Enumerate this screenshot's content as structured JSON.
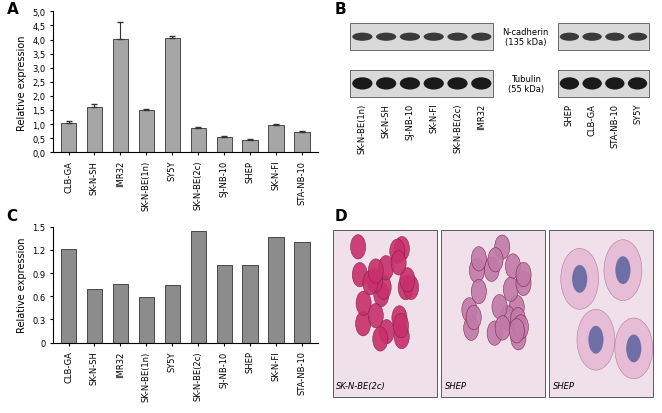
{
  "chart_data": [
    {
      "panel": "A",
      "type": "bar",
      "categories": [
        "CLB-GA",
        "SK-N-SH",
        "IMR32",
        "SK-N-BE(1n)",
        "SY5Y",
        "SK-N-BE(2c)",
        "SJ-NB-10",
        "SHEP",
        "SK-N-FI",
        "STA-NB-10"
      ],
      "values": [
        1.05,
        1.62,
        4.02,
        1.5,
        4.07,
        0.85,
        0.55,
        0.43,
        0.97,
        0.7
      ],
      "errors": [
        0.07,
        0.1,
        0.62,
        0.05,
        0.07,
        0.05,
        0.03,
        0.03,
        0.03,
        0.05
      ],
      "color": "#a6a6a6",
      "y_label": "Relative expression",
      "ylim": [
        0,
        5
      ],
      "yticks": [
        {
          "value": 0,
          "label": "0,0"
        },
        {
          "value": 0.5,
          "label": "0,5"
        },
        {
          "value": 1.0,
          "label": "1,0"
        },
        {
          "value": 1.5,
          "label": "1,5"
        },
        {
          "value": 2.0,
          "label": "2,0"
        },
        {
          "value": 2.5,
          "label": "2,5"
        },
        {
          "value": 3.0,
          "label": "3,0"
        },
        {
          "value": 3.5,
          "label": "3,5"
        },
        {
          "value": 4.0,
          "label": "4,0"
        },
        {
          "value": 4.5,
          "label": "4,5"
        },
        {
          "value": 5.0,
          "label": "5,0"
        }
      ]
    },
    {
      "panel": "C",
      "type": "bar",
      "categories": [
        "CLB-GA",
        "SK-N-SH",
        "IMR32",
        "SK-N-BE(1n)",
        "SY5Y",
        "SK-N-BE(2c)",
        "SJ-NB-10",
        "SHEP",
        "SK-N-FI",
        "STA-NB-10"
      ],
      "values": [
        1.21,
        0.69,
        0.76,
        0.59,
        0.75,
        1.45,
        1.0,
        1.0,
        1.37,
        1.3
      ],
      "color": "#8c8c8c",
      "y_label": "Relative expression",
      "ylim": [
        0,
        1.5
      ],
      "yticks": [
        0,
        0.3,
        0.6,
        0.9,
        1.2,
        1.5
      ]
    }
  ],
  "blot": {
    "panel": "B",
    "rows": [
      {
        "name": "N-cadherin",
        "size": "(135 kDa)"
      },
      {
        "name": "Tubulin",
        "size": "(55 kDa)"
      }
    ],
    "lanes": [
      [
        "SK-N-BE(1n)",
        "SK-N-SH",
        "SJ-NB-10",
        "SK-N-FI",
        "SK-N-BE(2c)",
        "IMR32"
      ],
      [
        "SHEP",
        "CLB-GA",
        "STA-NB-10",
        "SY5Y"
      ]
    ]
  },
  "micrographs": {
    "panel": "D",
    "images": [
      "SK-N-BE(2c)",
      "SHEP",
      "SHEP"
    ]
  }
}
